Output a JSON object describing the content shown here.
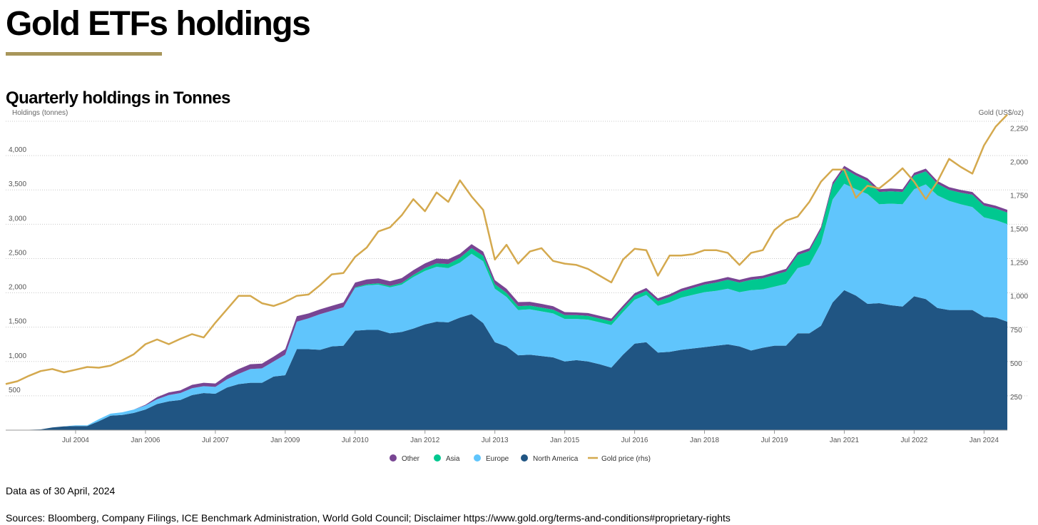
{
  "header": {
    "title": "Gold ETFs holdings",
    "rule_color": "#a8965a"
  },
  "footer": {
    "as_of": "Data as of 30 April, 2024",
    "sources": "Sources: Bloomberg, Company Filings, ICE Benchmark Administration, World Gold Council; Disclaimer https://www.gold.org/terms-and-conditions#proprietary-rights"
  },
  "chart_data": {
    "type": "area",
    "title": "Quarterly holdings in Tonnes",
    "ylabel": "Holdings (tonnes)",
    "y2label": "Gold (US$/oz)",
    "ylim": [
      0,
      4500
    ],
    "y_ticks": [
      500,
      1000,
      1500,
      2000,
      2500,
      3000,
      3500,
      4000
    ],
    "y2lim": [
      0,
      2300
    ],
    "y2_ticks": [
      250,
      500,
      750,
      1000,
      1250,
      1500,
      1750,
      2000,
      2250
    ],
    "x_tick_labels": [
      "Jul 2004",
      "Jan 2006",
      "Jul 2007",
      "Jan 2009",
      "Jul 2010",
      "Jan 2012",
      "Jul 2013",
      "Jan 2015",
      "Jul 2016",
      "Jan 2018",
      "Jul 2019",
      "Jan 2021",
      "Jul 2022",
      "Jan 2024"
    ],
    "x_tick_index": [
      6,
      12,
      18,
      24,
      30,
      36,
      42,
      48,
      54,
      60,
      66,
      72,
      78,
      84
    ],
    "grid": true,
    "stacked": true,
    "legend_position": "bottom-center",
    "x": [
      "Q4 2002",
      "Q1 2003",
      "Q2 2003",
      "Q3 2003",
      "Q4 2003",
      "Q1 2004",
      "Q2 2004",
      "Q3 2004",
      "Q4 2004",
      "Q1 2005",
      "Q2 2005",
      "Q3 2005",
      "Q4 2005",
      "Q1 2006",
      "Q2 2006",
      "Q3 2006",
      "Q4 2006",
      "Q1 2007",
      "Q2 2007",
      "Q3 2007",
      "Q4 2007",
      "Q1 2008",
      "Q2 2008",
      "Q3 2008",
      "Q4 2008",
      "Q1 2009",
      "Q2 2009",
      "Q3 2009",
      "Q4 2009",
      "Q1 2010",
      "Q2 2010",
      "Q3 2010",
      "Q4 2010",
      "Q1 2011",
      "Q2 2011",
      "Q3 2011",
      "Q4 2011",
      "Q1 2012",
      "Q2 2012",
      "Q3 2012",
      "Q4 2012",
      "Q1 2013",
      "Q2 2013",
      "Q3 2013",
      "Q4 2013",
      "Q1 2014",
      "Q2 2014",
      "Q3 2014",
      "Q4 2014",
      "Q1 2015",
      "Q2 2015",
      "Q3 2015",
      "Q4 2015",
      "Q1 2016",
      "Q2 2016",
      "Q3 2016",
      "Q4 2016",
      "Q1 2017",
      "Q2 2017",
      "Q3 2017",
      "Q4 2017",
      "Q1 2018",
      "Q2 2018",
      "Q3 2018",
      "Q4 2018",
      "Q1 2019",
      "Q2 2019",
      "Q3 2019",
      "Q4 2019",
      "Q1 2020",
      "Q2 2020",
      "Q3 2020",
      "Q4 2020",
      "Q1 2021",
      "Q2 2021",
      "Q3 2021",
      "Q4 2021",
      "Q1 2022",
      "Q2 2022",
      "Q3 2022",
      "Q4 2022",
      "Q1 2023",
      "Q2 2023",
      "Q3 2023",
      "Q4 2023",
      "Q1 2024",
      "Q2 2024"
    ],
    "series": [
      {
        "name": "North America",
        "color": "#205583",
        "values": [
          0,
          0,
          5,
          10,
          40,
          55,
          60,
          60,
          130,
          210,
          220,
          250,
          300,
          380,
          420,
          440,
          510,
          540,
          530,
          620,
          670,
          690,
          690,
          780,
          800,
          1180,
          1180,
          1170,
          1220,
          1230,
          1450,
          1460,
          1460,
          1410,
          1430,
          1480,
          1540,
          1580,
          1570,
          1640,
          1690,
          1560,
          1280,
          1220,
          1090,
          1100,
          1080,
          1060,
          1000,
          1020,
          1000,
          960,
          910,
          1100,
          1260,
          1280,
          1130,
          1140,
          1170,
          1190,
          1210,
          1230,
          1250,
          1220,
          1160,
          1200,
          1230,
          1230,
          1410,
          1410,
          1520,
          1860,
          2040,
          1960,
          1840,
          1850,
          1820,
          1800,
          1950,
          1910,
          1780,
          1750,
          1750,
          1750,
          1650,
          1640,
          1580
        ]
      },
      {
        "name": "Europe",
        "color": "#60c5fc",
        "values": [
          0,
          0,
          0,
          0,
          0,
          0,
          10,
          10,
          30,
          30,
          40,
          50,
          60,
          70,
          90,
          100,
          100,
          100,
          100,
          120,
          150,
          200,
          210,
          220,
          300,
          400,
          450,
          520,
          520,
          560,
          620,
          650,
          660,
          670,
          690,
          750,
          780,
          800,
          790,
          800,
          880,
          900,
          780,
          720,
          660,
          660,
          650,
          640,
          620,
          600,
          610,
          610,
          620,
          620,
          640,
          690,
          680,
          720,
          760,
          780,
          800,
          800,
          810,
          790,
          880,
          850,
          860,
          900,
          950,
          1000,
          1200,
          1500,
          1550,
          1550,
          1600,
          1440,
          1480,
          1490,
          1560,
          1670,
          1640,
          1590,
          1540,
          1500,
          1450,
          1420,
          1420
        ]
      },
      {
        "name": "Asia",
        "color": "#00c890",
        "values": [
          0,
          0,
          0,
          0,
          0,
          0,
          0,
          0,
          0,
          0,
          0,
          0,
          0,
          0,
          0,
          0,
          0,
          0,
          0,
          0,
          0,
          0,
          0,
          0,
          0,
          0,
          0,
          0,
          0,
          0,
          10,
          15,
          20,
          20,
          25,
          30,
          40,
          50,
          60,
          70,
          80,
          80,
          65,
          60,
          55,
          55,
          55,
          55,
          55,
          55,
          55,
          55,
          55,
          55,
          55,
          60,
          70,
          80,
          90,
          100,
          110,
          120,
          130,
          140,
          150,
          160,
          170,
          180,
          190,
          200,
          200,
          210,
          220,
          200,
          190,
          180,
          180,
          180,
          200,
          190,
          170,
          160,
          170,
          180,
          170,
          170,
          170
        ]
      },
      {
        "name": "Other",
        "color": "#784593",
        "values": [
          0,
          0,
          0,
          0,
          0,
          0,
          0,
          0,
          0,
          0,
          0,
          0,
          10,
          30,
          40,
          40,
          50,
          50,
          50,
          60,
          70,
          70,
          70,
          70,
          80,
          80,
          70,
          70,
          70,
          70,
          70,
          70,
          70,
          70,
          70,
          70,
          70,
          70,
          70,
          60,
          60,
          60,
          60,
          60,
          60,
          55,
          55,
          50,
          45,
          40,
          40,
          40,
          40,
          40,
          40,
          40,
          40,
          40,
          40,
          40,
          40,
          40,
          40,
          40,
          40,
          40,
          40,
          40,
          40,
          40,
          40,
          40,
          40,
          40,
          40,
          40,
          40,
          40,
          40,
          40,
          40,
          40,
          40,
          40,
          40,
          40,
          40
        ]
      }
    ],
    "line_series": {
      "name": "Gold price (rhs)",
      "color": "#d4a94e",
      "axis": "right",
      "values": [
        343,
        364,
        405,
        440,
        455,
        430,
        450,
        470,
        465,
        480,
        520,
        565,
        640,
        675,
        640,
        680,
        715,
        690,
        800,
        900,
        1000,
        1000,
        945,
        925,
        955,
        1000,
        1010,
        1080,
        1160,
        1170,
        1290,
        1360,
        1480,
        1510,
        1600,
        1720,
        1630,
        1770,
        1700,
        1860,
        1740,
        1640,
        1270,
        1380,
        1240,
        1330,
        1355,
        1260,
        1240,
        1230,
        1200,
        1150,
        1100,
        1270,
        1350,
        1340,
        1150,
        1300,
        1300,
        1310,
        1340,
        1340,
        1320,
        1230,
        1320,
        1340,
        1490,
        1560,
        1590,
        1700,
        1850,
        1940,
        1940,
        1730,
        1820,
        1800,
        1870,
        1950,
        1850,
        1720,
        1850,
        2020,
        1960,
        1910,
        2120,
        2260,
        2350
      ]
    }
  }
}
